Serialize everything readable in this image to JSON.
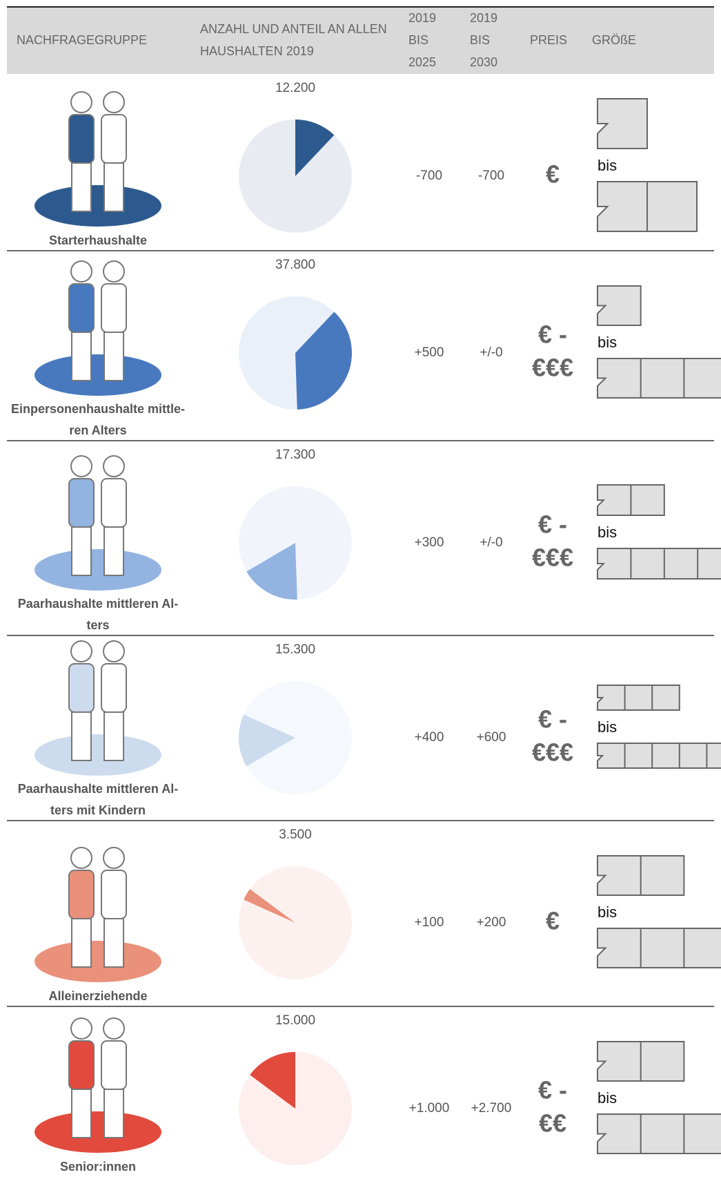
{
  "header": {
    "columns": [
      [
        "NACHFRAGEGRUPPE"
      ],
      [
        "ANZAHL UND ANTEIL AN ALLEN",
        "HAUSHALTEN 2019"
      ],
      [
        "2019",
        "BIS",
        "2025"
      ],
      [
        "2019",
        "BIS",
        "2030"
      ],
      [
        "PREIS"
      ],
      [
        "GRÖßE"
      ]
    ]
  },
  "rows": [
    {
      "name": [
        "Starterhaushalte"
      ],
      "households": {
        "value": 12200,
        "label": "12.200"
      },
      "change_2025": "-700",
      "change_2030": "-700",
      "price": [
        "€"
      ],
      "size_label": "bis",
      "color": "#2d5a8e",
      "pie_bg": "#e8ecf2"
    },
    {
      "name": [
        "Einpersonenhaushalte mittle-",
        "ren Alters"
      ],
      "households": {
        "value": 37800,
        "label": "37.800"
      },
      "change_2025": "+500",
      "change_2030": "+/-0",
      "price": [
        "€ -",
        "€€€"
      ],
      "size_label": "bis",
      "color": "#4879bf",
      "pie_bg": "#eaf0f8"
    },
    {
      "name": [
        "Paarhaushalte mittleren Al-",
        "ters"
      ],
      "households": {
        "value": 17300,
        "label": "17.300"
      },
      "change_2025": "+300",
      "change_2030": "+/-0",
      "price": [
        "€ -",
        "€€€"
      ],
      "size_label": "bis",
      "color": "#93b3e1",
      "pie_bg": "#f1f5fb"
    },
    {
      "name": [
        "Paarhaushalte mittleren Al-",
        "ters mit Kindern"
      ],
      "households": {
        "value": 15300,
        "label": "15.300"
      },
      "change_2025": "+400",
      "change_2030": "+600",
      "price": [
        "€ -",
        "€€€"
      ],
      "size_label": "bis",
      "color": "#cddbee",
      "pie_bg": "#f5f8fc"
    },
    {
      "name": [
        "Alleinerziehende"
      ],
      "households": {
        "value": 3500,
        "label": "3.500"
      },
      "change_2025": "+100",
      "change_2030": "+200",
      "price": [
        "€"
      ],
      "size_label": "bis",
      "color": "#e9917a",
      "pie_bg": "#fdf1ef"
    },
    {
      "name": [
        "Senior:innen"
      ],
      "households": {
        "value": 15000,
        "label": "15.000"
      },
      "change_2025": "+1.000",
      "change_2030": "+2.700",
      "price": [
        "€ -",
        "€€"
      ],
      "size_label": "bis",
      "color": "#e14a3d",
      "pie_bg": "#fdefee"
    }
  ]
}
